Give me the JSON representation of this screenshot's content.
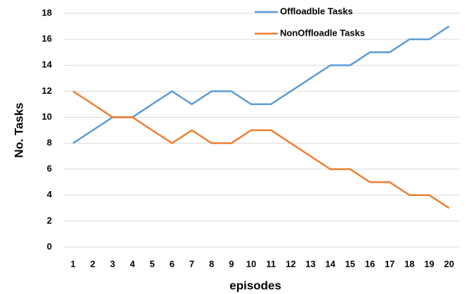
{
  "chart_data": {
    "type": "line",
    "categories": [
      "1",
      "2",
      "3",
      "4",
      "5",
      "6",
      "7",
      "8",
      "9",
      "10",
      "11",
      "12",
      "13",
      "14",
      "15",
      "16",
      "17",
      "18",
      "19",
      "20"
    ],
    "series": [
      {
        "name": "Offloadble Tasks",
        "color": "#5b9bd5",
        "values": [
          8,
          9,
          10,
          10,
          11,
          12,
          11,
          12,
          12,
          11,
          11,
          12,
          13,
          14,
          14,
          15,
          15,
          16,
          16,
          17
        ]
      },
      {
        "name": "NonOffloadle Tasks",
        "color": "#ed7d31",
        "values": [
          12,
          11,
          10,
          10,
          9,
          8,
          9,
          8,
          8,
          9,
          9,
          8,
          7,
          6,
          6,
          5,
          5,
          4,
          4,
          3
        ]
      }
    ],
    "xlabel": "episodes",
    "ylabel": "No. Tasks",
    "ylim": [
      0,
      18
    ],
    "yticks": [
      0,
      2,
      4,
      6,
      8,
      10,
      12,
      14,
      16,
      18
    ],
    "grid": true,
    "legend": "upper center"
  }
}
